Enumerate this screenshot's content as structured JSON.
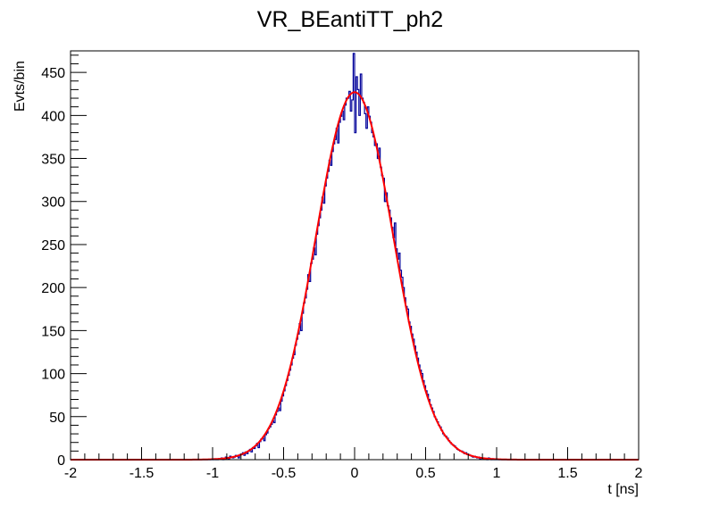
{
  "chart_data": {
    "type": "histogram",
    "title": "VR_BEantiTT_ph2",
    "xlabel": "t [ns]",
    "ylabel": "Evts/bin",
    "xlim": [
      -2,
      2
    ],
    "ylim": [
      0,
      475
    ],
    "x_ticks": [
      "-2",
      "-1.5",
      "-1",
      "-0.5",
      "0",
      "0.5",
      "1",
      "1.5",
      "2"
    ],
    "y_ticks": [
      "0",
      "50",
      "100",
      "150",
      "200",
      "250",
      "300",
      "350",
      "400",
      "450"
    ],
    "bin_width": 0.01,
    "first_bin_low_edge": -1.0,
    "series": [
      {
        "name": "data",
        "color": "#000099",
        "values": [
          0,
          1,
          0,
          0,
          1,
          1,
          2,
          0,
          1,
          3,
          2,
          1,
          4,
          3,
          2,
          3,
          5,
          4,
          2,
          6,
          6,
          8,
          5,
          9,
          7,
          10,
          12,
          9,
          14,
          13,
          16,
          19,
          14,
          21,
          24,
          25,
          22,
          29,
          31,
          36,
          38,
          41,
          45,
          43,
          52,
          56,
          60,
          57,
          68,
          74,
          80,
          86,
          92,
          98,
          104,
          110,
          118,
          122,
          133,
          140,
          146,
          158,
          150,
          170,
          182,
          188,
          198,
          215,
          207,
          228,
          233,
          246,
          238,
          262,
          272,
          281,
          290,
          305,
          298,
          318,
          327,
          335,
          348,
          342,
          358,
          367,
          372,
          385,
          368,
          392,
          399,
          405,
          395,
          412,
          420,
          420,
          428,
          405,
          418,
          472,
          380,
          445,
          430,
          400,
          448,
          420,
          415,
          402,
          385,
          410,
          399,
          392,
          380,
          375,
          365,
          367,
          350,
          362,
          340,
          330,
          327,
          300,
          310,
          295,
          290,
          281,
          270,
          258,
          275,
          245,
          233,
          240,
          220,
          212,
          200,
          188,
          178,
          175,
          160,
          155,
          146,
          140,
          132,
          125,
          118,
          110,
          104,
          100,
          92,
          86,
          80,
          76,
          70,
          64,
          60,
          56,
          50,
          47,
          44,
          40,
          38,
          34,
          30,
          28,
          27,
          25,
          22,
          20,
          18,
          17,
          16,
          14,
          12,
          11,
          10,
          10,
          9,
          7,
          8,
          6,
          6,
          5,
          4,
          3,
          4,
          3,
          2,
          3,
          1,
          2,
          2,
          1,
          1,
          0,
          2,
          1,
          0,
          1,
          0,
          0
        ]
      },
      {
        "name": "gaussian fit",
        "color": "#ff0000",
        "amplitude": 427,
        "mean": 0.0,
        "sigma": 0.273
      }
    ],
    "grid": false,
    "legend": "none"
  }
}
